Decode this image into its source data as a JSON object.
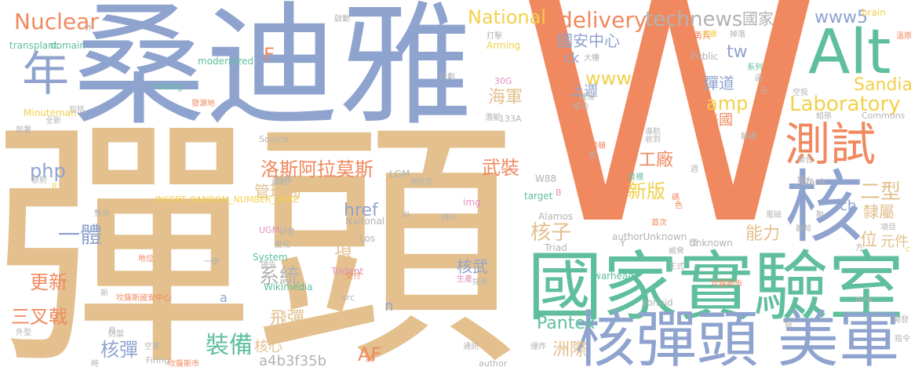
{
  "colors": {
    "tan": "#e3c08d",
    "blue": "#8fa3cf",
    "orange": "#f0895f",
    "teal": "#5fbf9c",
    "grey": "#b3b3b3",
    "yellow": "#f2d04b",
    "pink": "#e38fbd",
    "green": "#9fcf5f"
  },
  "words": {
    "dantou": "彈頭",
    "sangdiya": "桑迪雅",
    "W": "W",
    "guojia_shiyanshi": "國家實驗室",
    "alt": "Alt",
    "he": "核",
    "cheshi": "測試",
    "hedantou_meijun": "核彈頭 美軍",
    "nian": "年",
    "nuclear": "Nuclear",
    "national": "National",
    "delivery": "delivery",
    "technews": "technews",
    "guojia": "國家",
    "www5": "www5",
    "guoanzhongxin": "國安中心",
    "tw": "tw",
    "www": "www",
    "sandia": "Sandia",
    "laboratory": "Laboratory",
    "amp": "amp",
    "dandao": "彈道",
    "shangzhou": "上週",
    "haijun": "海軍",
    "meiguo": "美國",
    "gongchang": "工廠",
    "erxing": "二型",
    "wuzhuang": "武裝",
    "luosi": "洛斯阿拉莫斯",
    "php": "php",
    "xinban": "新版",
    "lishu": "隸屬",
    "cb": "cb",
    "guanliju": "管理局",
    "yiti": "一體",
    "hezi": "核子",
    "nengli": "能力",
    "wei": "位",
    "yuanjian": "元件",
    "xitong": "系統",
    "xiang": "項",
    "gengxin": "更新",
    "sanchaji": "三叉戟",
    "feidan": "飛彈",
    "hewu": "核武",
    "pantex": "Pantex",
    "zhuangbei": "裝備",
    "hexin": "核心",
    "AF": "AF",
    "zhouji": "洲際",
    "hedan": "核彈",
    "hash": "a4b3f35b",
    "href": "href",
    "ck": "ck",
    "F": "F",
    "a": "a",
    "n": "n",
    "transplant": "transplant",
    "domain": "domain",
    "modernized": "modernized",
    "fuzing": "Fuzing",
    "minuteman": "Minuteman",
    "source": "Source",
    "insert": "INSERT_RANDOM_NUMBER_HERE",
    "lgm": "LGM",
    "naitonal": "Naitonal",
    "system": "System",
    "wikimedia": "Wikimedia",
    "trident": "Trident",
    "firing": "Firing",
    "author": "author",
    "src": "src",
    "los": "Los",
    "img": "img",
    "target": "target",
    "alamos": "Alamos",
    "triad": "Triad",
    "authorunknown": "authorUnknown",
    "warhead": "warhead",
    "zoneid": "zoneid",
    "unknown": "Unknown",
    "blank": "_blank",
    "commons": "Commons",
    "public": "Public",
    "arming": "Arming",
    "brain": "brain",
    "avw": "avw",
    "w88": "W88",
    "ugm": "UGM",
    "30g": "30G",
    "133a": "133A",
    "y": "Y",
    "b": "B",
    "ii": "II",
    "iii": "III",
    "c": "c",
    "yongbing": "勇兵",
    "qidong": "啟動",
    "wai": "外",
    "daji": "打擊",
    "wancheng": "完畢",
    "diaohuan": "掉落",
    "wenyuan": "溫原",
    "xilie": "系列",
    "dalou": "大樓",
    "jihua": "計劃",
    "queqi": "確保",
    "chengji": "成功",
    "fayuandi": "發源地",
    "baokuo": "包括",
    "quanxin": "全新",
    "bushu": "部署",
    "qianting": "潛艇",
    "kongjun": "空軍",
    "shoudao": "收到",
    "xingba": "星哈頓",
    "geng": "更",
    "daohang": "導航",
    "fashe": "發射",
    "yanjiu": "研發",
    "bianhua": "變化",
    "lingxian": "領先",
    "yibing": "一併",
    "diwei": "地位",
    "zhenghe": "整合",
    "quanshi": "詮釋",
    "feixing": "飛行",
    "jiaofu": "交付",
    "shengchan": "生產",
    "caiyong": "採用",
    "tongxun": "通訊",
    "baozha": "爆炸",
    "zhiling": "指令",
    "fangyu": "防禦",
    "waixing": "外型",
    "kongzhi": "空軍",
    "zhengshi": "正式",
    "weixie": "威脅",
    "dianhuo": "點火",
    "dianzi": "電磁",
    "kanbo": "坎薩斯市",
    "lianbang": "聯邦",
    "kaifa": "開發",
    "xiangmu": "項目",
    "lianhe": "聯合",
    "mubiao": "目標",
    "kongshi": "空投",
    "zuzhi": "組態",
    "jiedu": "解讀",
    "qianshe": "潛射型",
    "shouci": "首次",
    "yuan": "元",
    "zhenhai": "震撼",
    "kanxian": "坎薩斯國安中心",
    "xinde": "新",
    "yue": "月",
    "shi": "時",
    "kanbosi": "坎薩斯市",
    "shici": "試",
    "zhou": "週",
    "xingwei": "型",
    "ji": "級",
    "lian": "聯",
    "han": "函",
    "fangxiang": "方",
    "se": "色",
    "ma": "碼"
  }
}
